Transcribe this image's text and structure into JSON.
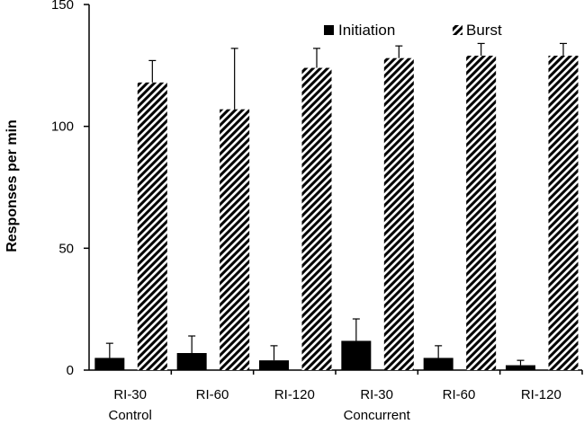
{
  "chart_data": {
    "type": "bar",
    "categories": [
      "RI-30",
      "RI-60",
      "RI-120",
      "RI-30",
      "RI-60",
      "RI-120"
    ],
    "groups": [
      {
        "label": "Control",
        "span": [
          0,
          2
        ]
      },
      {
        "label": "Concurrent",
        "span": [
          3,
          5
        ]
      }
    ],
    "series": [
      {
        "name": "Initiation",
        "fill": "solid",
        "color": "#000000",
        "values": [
          5,
          7,
          4,
          12,
          5,
          2
        ],
        "error": [
          6,
          7,
          6,
          9,
          5,
          2
        ]
      },
      {
        "name": "Burst",
        "fill": "diagonal-hatch",
        "color": "#000000",
        "values": [
          118,
          107,
          124,
          128,
          129,
          129
        ],
        "error": [
          9,
          25,
          8,
          5,
          5,
          5
        ]
      }
    ],
    "ylabel": "Responses per min",
    "xlabel": "",
    "ylim": [
      0,
      150
    ],
    "yticks": [
      0,
      50,
      100,
      150
    ],
    "grid": false,
    "legend_position": "top-right"
  }
}
